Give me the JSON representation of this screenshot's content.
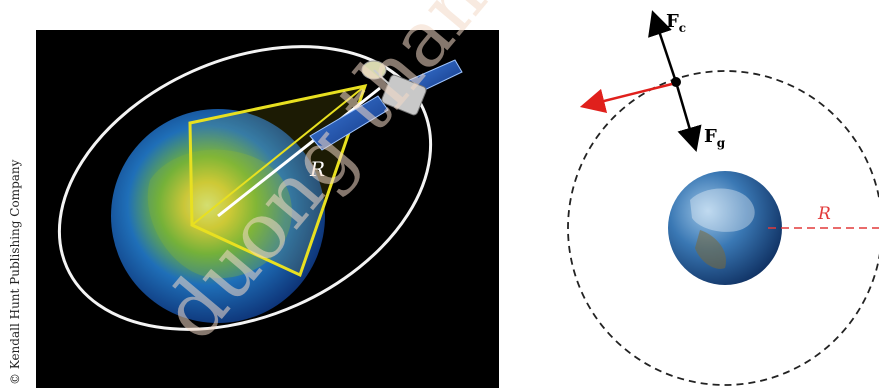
{
  "left_figure": {
    "copyright": "© Kendall Hunt Publishing Company",
    "radius_label": "R"
  },
  "right_figure": {
    "force_c_main": "F",
    "force_c_sub": "c",
    "force_g_main": "F",
    "force_g_sub": "g",
    "radius_label": "R"
  },
  "watermark": "duong than con",
  "colors": {
    "space": "#000000",
    "orbit_white": "#f4f4f4",
    "beam_yellow": "#e8e020",
    "velocity_arrow": "#e0201c",
    "radius_dashed": "#e23a3a",
    "orbit_dashed": "#222222",
    "watermark": "#f3d9c6"
  }
}
